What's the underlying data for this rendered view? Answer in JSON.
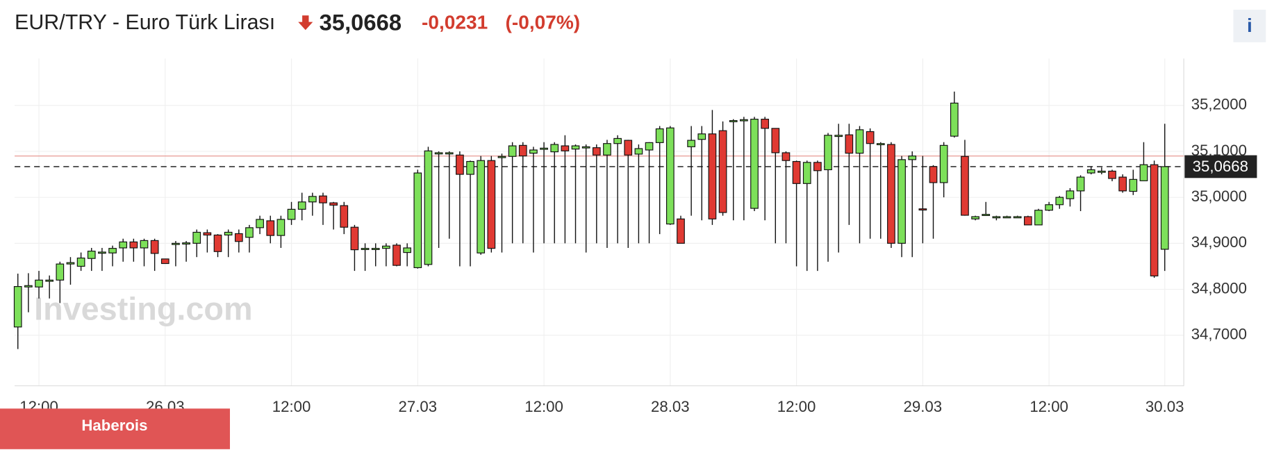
{
  "header": {
    "title": "EUR/TRY - Euro Türk Lirası",
    "change": "-0,0231",
    "change_percent": "(-0,07%)",
    "info": "i"
  },
  "watermark": "Investing.com",
  "banner": "Haberois",
  "chart_data": {
    "type": "candlestick",
    "categories": [
      null,
      null,
      "12:00",
      null,
      null,
      null,
      null,
      null,
      null,
      null,
      null,
      null,
      null,
      null,
      "26.03",
      null,
      null,
      null,
      null,
      null,
      null,
      null,
      null,
      null,
      null,
      null,
      "12:00",
      null,
      null,
      null,
      null,
      null,
      null,
      null,
      null,
      null,
      null,
      null,
      "27.03",
      null,
      null,
      null,
      null,
      null,
      null,
      null,
      null,
      null,
      null,
      null,
      "12:00",
      null,
      null,
      null,
      null,
      null,
      null,
      null,
      null,
      null,
      null,
      null,
      "28.03",
      null,
      null,
      null,
      null,
      null,
      null,
      null,
      null,
      null,
      null,
      null,
      "12:00",
      null,
      null,
      null,
      null,
      null,
      null,
      null,
      null,
      null,
      null,
      null,
      "29.03",
      null,
      null,
      null,
      null,
      null,
      null,
      null,
      null,
      null,
      null,
      null,
      "12:00",
      null,
      null,
      null,
      null,
      null,
      null,
      null,
      null,
      null,
      null,
      "30.03"
    ],
    "open": [
      34.718,
      34.805,
      34.805,
      34.82,
      34.82,
      34.855,
      34.85,
      34.867,
      34.88,
      34.879,
      34.89,
      34.903,
      34.89,
      34.906,
      34.866,
      34.9,
      34.9,
      34.9,
      34.923,
      34.918,
      34.918,
      34.921,
      34.913,
      34.934,
      34.949,
      34.917,
      34.952,
      34.974,
      34.99,
      35.003,
      34.988,
      34.982,
      34.935,
      34.889,
      34.889,
      34.889,
      34.896,
      34.88,
      34.847,
      34.854,
      35.095,
      35.096,
      35.092,
      35.05,
      34.879,
      35.08,
      35.088,
      35.089,
      35.113,
      35.096,
      35.106,
      35.099,
      35.112,
      35.105,
      35.11,
      35.108,
      35.092,
      35.117,
      35.124,
      35.094,
      35.103,
      35.119,
      34.942,
      34.953,
      35.11,
      35.126,
      35.138,
      35.145,
      35.167,
      35.168,
      34.976,
      35.17,
      35.15,
      35.097,
      35.078,
      35.03,
      35.076,
      35.06,
      35.134,
      35.136,
      35.096,
      35.143,
      35.117,
      35.115,
      34.9,
      35.082,
      34.975,
      35.067,
      35.032,
      35.133,
      35.089,
      34.953,
      34.963,
      34.958,
      34.958,
      34.958,
      34.958,
      34.94,
      34.972,
      34.984,
      34.997,
      35.014,
      35.053,
      35.057,
      35.057,
      35.044,
      35.013,
      35.036,
      35.071,
      34.887
    ],
    "high": [
      34.834,
      34.835,
      34.84,
      34.83,
      34.86,
      34.87,
      34.88,
      34.89,
      34.89,
      34.895,
      34.91,
      34.91,
      34.91,
      34.91,
      34.866,
      34.905,
      34.905,
      34.93,
      34.93,
      34.92,
      34.93,
      34.93,
      34.94,
      34.96,
      34.96,
      34.96,
      34.99,
      35.01,
      35.01,
      35.01,
      34.99,
      34.99,
      34.94,
      34.9,
      34.9,
      34.9,
      34.9,
      34.9,
      35.06,
      35.11,
      35.1,
      35.1,
      35.1,
      35.08,
      35.09,
      35.09,
      35.095,
      35.12,
      35.12,
      35.11,
      35.12,
      35.12,
      35.135,
      35.115,
      35.115,
      35.115,
      35.125,
      35.135,
      35.125,
      35.115,
      35.12,
      35.155,
      35.155,
      34.96,
      35.155,
      35.155,
      35.19,
      35.165,
      35.17,
      35.175,
      35.175,
      35.175,
      35.15,
      35.1,
      35.08,
      35.08,
      35.08,
      35.14,
      35.16,
      35.16,
      35.155,
      35.15,
      35.12,
      35.12,
      35.09,
      35.1,
      35.09,
      35.07,
      35.12,
      35.23,
      35.125,
      34.96,
      34.99,
      34.96,
      34.96,
      34.96,
      34.96,
      34.975,
      34.99,
      35.003,
      35.02,
      35.048,
      35.067,
      35.065,
      35.06,
      35.05,
      35.06,
      35.12,
      35.08,
      35.16
    ],
    "low": [
      34.67,
      34.75,
      34.78,
      34.78,
      34.77,
      34.81,
      34.84,
      34.84,
      34.84,
      34.85,
      34.86,
      34.86,
      34.85,
      34.84,
      34.856,
      34.85,
      34.86,
      34.87,
      34.88,
      34.87,
      34.87,
      34.88,
      34.88,
      34.92,
      34.9,
      34.89,
      34.94,
      34.95,
      34.96,
      34.94,
      34.93,
      34.92,
      34.84,
      34.84,
      34.85,
      34.85,
      34.85,
      34.85,
      34.845,
      34.85,
      34.89,
      34.91,
      34.85,
      34.85,
      34.875,
      34.88,
      34.88,
      34.9,
      34.9,
      34.88,
      34.9,
      34.9,
      34.9,
      34.9,
      34.88,
      34.9,
      34.89,
      34.9,
      34.89,
      34.9,
      34.9,
      34.92,
      34.94,
      34.9,
      34.96,
      34.95,
      34.94,
      34.96,
      34.95,
      34.95,
      34.97,
      34.95,
      34.9,
      34.9,
      34.85,
      34.84,
      34.84,
      34.86,
      34.88,
      34.94,
      34.9,
      34.91,
      34.91,
      34.89,
      34.87,
      34.87,
      34.9,
      34.91,
      35.0,
      35.13,
      34.96,
      34.95,
      34.96,
      34.95,
      34.955,
      34.955,
      34.94,
      34.94,
      34.97,
      34.975,
      34.98,
      34.97,
      35.05,
      35.05,
      35.035,
      35.01,
      35.005,
      35.036,
      34.825,
      34.84
    ],
    "close": [
      34.806,
      34.808,
      34.82,
      34.82,
      34.855,
      34.858,
      34.868,
      34.883,
      34.881,
      34.889,
      34.903,
      34.89,
      34.906,
      34.878,
      34.856,
      34.9,
      34.901,
      34.924,
      34.918,
      34.882,
      34.924,
      34.904,
      34.934,
      34.952,
      34.917,
      34.952,
      34.974,
      34.99,
      35.002,
      34.988,
      34.983,
      34.935,
      34.886,
      34.889,
      34.889,
      34.894,
      34.852,
      34.89,
      35.053,
      35.101,
      35.097,
      35.097,
      35.05,
      35.078,
      35.08,
      34.889,
      35.089,
      35.112,
      35.09,
      35.103,
      35.107,
      35.115,
      35.101,
      35.112,
      35.11,
      35.092,
      35.117,
      35.128,
      35.092,
      35.106,
      35.119,
      35.149,
      35.151,
      34.9,
      35.124,
      35.138,
      34.953,
      34.967,
      35.167,
      35.169,
      35.17,
      35.15,
      35.097,
      35.08,
      35.03,
      35.076,
      35.058,
      35.135,
      35.135,
      35.096,
      35.147,
      35.117,
      35.117,
      34.9,
      35.082,
      35.09,
      34.974,
      35.032,
      35.113,
      35.205,
      34.961,
      34.958,
      34.963,
      34.958,
      34.958,
      34.958,
      34.94,
      34.972,
      34.984,
      35.0,
      35.014,
      35.044,
      35.06,
      35.057,
      35.041,
      35.014,
      35.039,
      35.071,
      34.829,
      35.0668
    ],
    "up_color": "#7de05a",
    "down_color": "#e03a33",
    "last_price": {
      "value": 35.0668,
      "label": "35,0668"
    },
    "previous_close": 35.0899,
    "previous_close_color": "#e89a94",
    "ylim": [
      34.59,
      35.302
    ],
    "yticks": [
      {
        "value": 34.7,
        "label": "34,7000"
      },
      {
        "value": 34.8,
        "label": "34,8000"
      },
      {
        "value": 34.9,
        "label": "34,9000"
      },
      {
        "value": 35.0,
        "label": "35,0000"
      },
      {
        "value": 35.1,
        "label": "35,1000"
      },
      {
        "value": 35.2,
        "label": "35,2000"
      }
    ],
    "grid": true
  }
}
